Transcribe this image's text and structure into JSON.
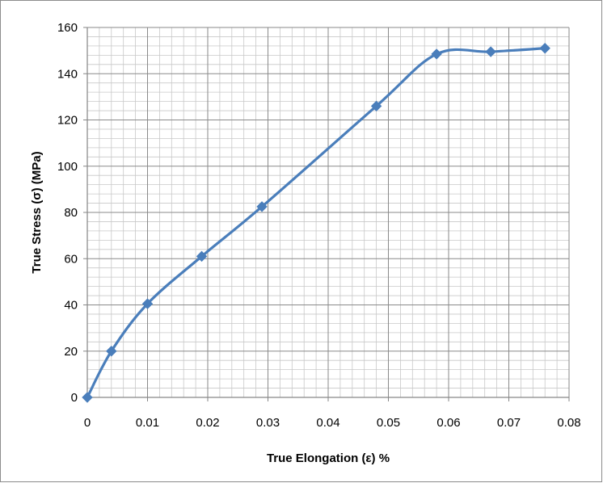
{
  "chart_data": {
    "type": "line",
    "title": "",
    "xlabel": "True Elongation (ε) %",
    "ylabel": "True Stress (σ) (MPa)",
    "xlim": [
      0,
      0.08
    ],
    "ylim": [
      0,
      160
    ],
    "x_ticks": [
      "0",
      "0.01",
      "0.02",
      "0.03",
      "0.04",
      "0.05",
      "0.06",
      "0.07",
      "0.08"
    ],
    "y_ticks": [
      "0",
      "20",
      "40",
      "60",
      "80",
      "100",
      "120",
      "140",
      "160"
    ],
    "grid": true,
    "minor_grid": true,
    "legend": "none",
    "smooth": true,
    "marker": "diamond",
    "series": [
      {
        "color": "#4a7ebb",
        "x": [
          0,
          0.004,
          0.01,
          0.019,
          0.029,
          0.048,
          0.058,
          0.067,
          0.076
        ],
        "y": [
          0,
          20,
          40.5,
          61,
          82.5,
          126,
          148.5,
          149.5,
          151
        ]
      }
    ]
  }
}
